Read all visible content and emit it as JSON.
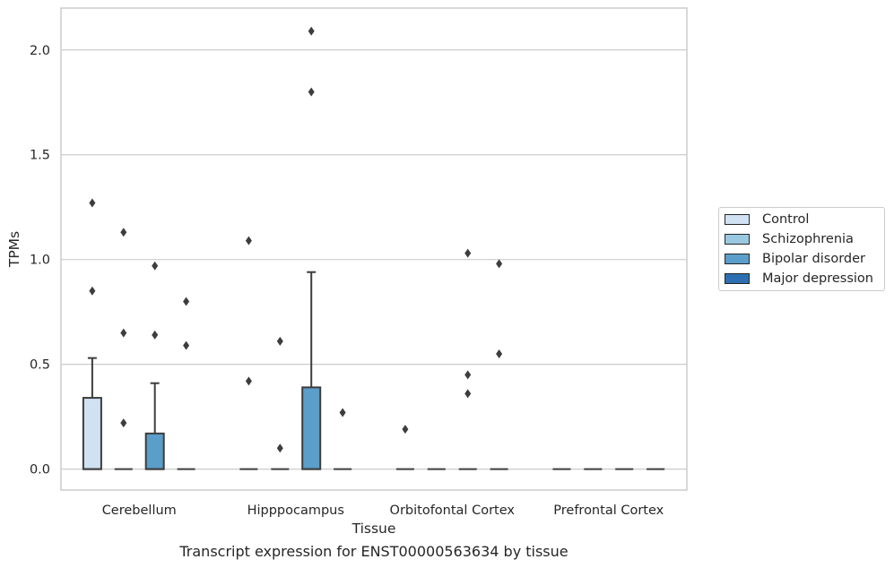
{
  "chart_data": {
    "type": "box",
    "title": "",
    "xlabel": "Tissue",
    "ylabel": "TPMs",
    "caption": "Transcript expression for ENST00000563634 by tissue",
    "ylim": [
      -0.1,
      2.2
    ],
    "yticks": [
      0.0,
      0.5,
      1.0,
      1.5,
      2.0
    ],
    "ytick_labels": [
      "0.0",
      "0.5",
      "1.0",
      "1.5",
      "2.0"
    ],
    "grid": true,
    "legend_position": "right",
    "categories": [
      "Cerebellum",
      "Hipppocampus",
      "Orbitofontal Cortex",
      "Prefrontal Cortex"
    ],
    "series": [
      {
        "name": "Control",
        "color": "#d0e1f2",
        "boxes": [
          {
            "q1": 0.0,
            "median": 0.0,
            "q3": 0.34,
            "whisker_low": 0.0,
            "whisker_high": 0.53,
            "outliers": [
              0.85,
              1.27
            ]
          },
          {
            "q1": 0.0,
            "median": 0.0,
            "q3": 0.0,
            "whisker_low": 0.0,
            "whisker_high": 0.0,
            "outliers": [
              0.42,
              1.09
            ]
          },
          {
            "q1": 0.0,
            "median": 0.0,
            "q3": 0.0,
            "whisker_low": 0.0,
            "whisker_high": 0.0,
            "outliers": [
              0.19
            ]
          },
          {
            "q1": 0.0,
            "median": 0.0,
            "q3": 0.0,
            "whisker_low": 0.0,
            "whisker_high": 0.0,
            "outliers": []
          }
        ]
      },
      {
        "name": "Schizophrenia",
        "color": "#9ac8e0",
        "boxes": [
          {
            "q1": 0.0,
            "median": 0.0,
            "q3": 0.0,
            "whisker_low": 0.0,
            "whisker_high": 0.0,
            "outliers": [
              0.22,
              0.65,
              1.13
            ]
          },
          {
            "q1": 0.0,
            "median": 0.0,
            "q3": 0.0,
            "whisker_low": 0.0,
            "whisker_high": 0.0,
            "outliers": [
              0.1,
              0.61
            ]
          },
          {
            "q1": 0.0,
            "median": 0.0,
            "q3": 0.0,
            "whisker_low": 0.0,
            "whisker_high": 0.0,
            "outliers": []
          },
          {
            "q1": 0.0,
            "median": 0.0,
            "q3": 0.0,
            "whisker_low": 0.0,
            "whisker_high": 0.0,
            "outliers": []
          }
        ]
      },
      {
        "name": "Bipolar disorder",
        "color": "#5a9ec9",
        "boxes": [
          {
            "q1": 0.0,
            "median": 0.0,
            "q3": 0.17,
            "whisker_low": 0.0,
            "whisker_high": 0.41,
            "outliers": [
              0.64,
              0.97
            ]
          },
          {
            "q1": 0.0,
            "median": 0.0,
            "q3": 0.39,
            "whisker_low": 0.0,
            "whisker_high": 0.94,
            "outliers": [
              1.8,
              2.09
            ]
          },
          {
            "q1": 0.0,
            "median": 0.0,
            "q3": 0.0,
            "whisker_low": 0.0,
            "whisker_high": 0.0,
            "outliers": [
              0.36,
              0.45,
              1.03
            ]
          },
          {
            "q1": 0.0,
            "median": 0.0,
            "q3": 0.0,
            "whisker_low": 0.0,
            "whisker_high": 0.0,
            "outliers": []
          }
        ]
      },
      {
        "name": "Major depression",
        "color": "#2d6fb0",
        "boxes": [
          {
            "q1": 0.0,
            "median": 0.0,
            "q3": 0.0,
            "whisker_low": 0.0,
            "whisker_high": 0.0,
            "outliers": [
              0.59,
              0.8
            ]
          },
          {
            "q1": 0.0,
            "median": 0.0,
            "q3": 0.0,
            "whisker_low": 0.0,
            "whisker_high": 0.0,
            "outliers": [
              0.27
            ]
          },
          {
            "q1": 0.0,
            "median": 0.0,
            "q3": 0.0,
            "whisker_low": 0.0,
            "whisker_high": 0.0,
            "outliers": [
              0.55,
              0.98
            ]
          },
          {
            "q1": 0.0,
            "median": 0.0,
            "q3": 0.0,
            "whisker_low": 0.0,
            "whisker_high": 0.0,
            "outliers": []
          }
        ]
      }
    ]
  }
}
